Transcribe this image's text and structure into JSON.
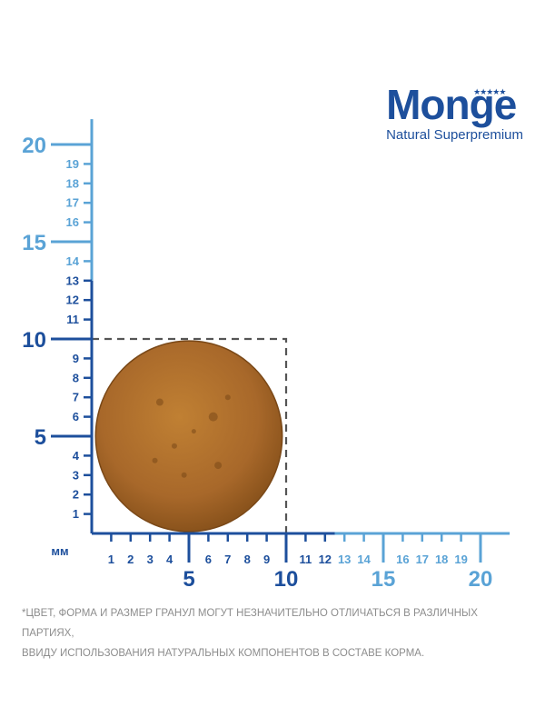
{
  "brand": {
    "name": "Monge",
    "tagline": "Natural Superpremium"
  },
  "unit_label": "мм",
  "y_axis": {
    "major_ticks": [
      {
        "value": 5,
        "label": "5"
      },
      {
        "value": 10,
        "label": "10"
      },
      {
        "value": 15,
        "label": "15"
      },
      {
        "value": 20,
        "label": "20"
      }
    ],
    "minor_ticks": [
      {
        "value": 1,
        "label": "1"
      },
      {
        "value": 2,
        "label": "2"
      },
      {
        "value": 3,
        "label": "3"
      },
      {
        "value": 4,
        "label": "4"
      },
      {
        "value": 6,
        "label": "6"
      },
      {
        "value": 7,
        "label": "7"
      },
      {
        "value": 8,
        "label": "8"
      },
      {
        "value": 9,
        "label": "9"
      },
      {
        "value": 11,
        "label": "11"
      },
      {
        "value": 12,
        "label": "12"
      },
      {
        "value": 13,
        "label": "13"
      },
      {
        "value": 14,
        "label": "14"
      },
      {
        "value": 16,
        "label": "16"
      },
      {
        "value": 17,
        "label": "17"
      },
      {
        "value": 18,
        "label": "18"
      },
      {
        "value": 19,
        "label": "19"
      }
    ]
  },
  "x_axis": {
    "major_ticks": [
      {
        "value": 5,
        "label": "5"
      },
      {
        "value": 10,
        "label": "10"
      },
      {
        "value": 15,
        "label": "15"
      },
      {
        "value": 20,
        "label": "20"
      }
    ],
    "minor_ticks": [
      {
        "value": 1,
        "label": "1"
      },
      {
        "value": 2,
        "label": "2"
      },
      {
        "value": 3,
        "label": "3"
      },
      {
        "value": 4,
        "label": "4"
      },
      {
        "value": 6,
        "label": "6"
      },
      {
        "value": 7,
        "label": "7"
      },
      {
        "value": 8,
        "label": "8"
      },
      {
        "value": 9,
        "label": "9"
      },
      {
        "value": 11,
        "label": "11"
      },
      {
        "value": 12,
        "label": "12"
      },
      {
        "value": 13,
        "label": "13"
      },
      {
        "value": 14,
        "label": "14"
      },
      {
        "value": 16,
        "label": "16"
      },
      {
        "value": 17,
        "label": "17"
      },
      {
        "value": 18,
        "label": "18"
      },
      {
        "value": 19,
        "label": "19"
      }
    ]
  },
  "kibble": {
    "width_mm": 10,
    "height_mm": 10
  },
  "colors": {
    "dark_blue": "#1d4f9c",
    "light_blue": "#5aa3d6",
    "kibble_main": "#b0722a",
    "kibble_dark": "#7a4817",
    "dashed": "#555555"
  },
  "disclaimer": {
    "line1": "*ЦВЕТ, ФОРМА И РАЗМЕР ГРАНУЛ МОГУТ НЕЗНАЧИТЕЛЬНО ОТЛИЧАТЬСЯ В РАЗЛИЧНЫХ ПАРТИЯХ,",
    "line2": "ВВИДУ ИСПОЛЬЗОВАНИЯ НАТУРАЛЬНЫХ КОМПОНЕНТОВ В СОСТАВЕ КОРМА."
  }
}
